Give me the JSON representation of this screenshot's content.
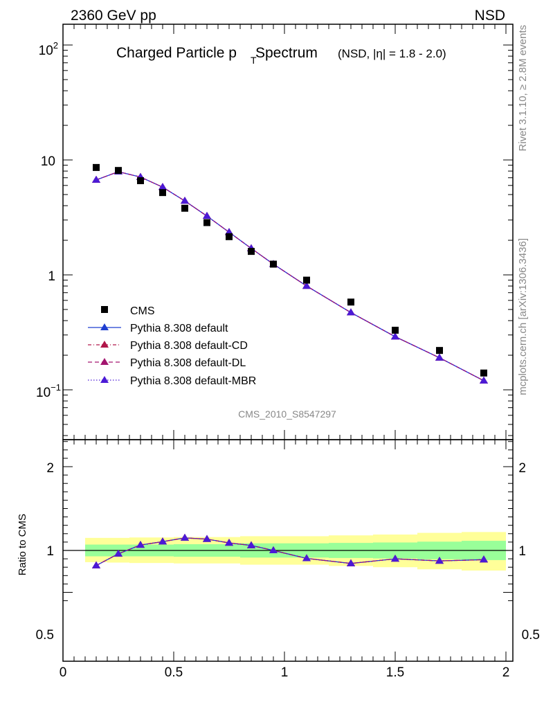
{
  "header": {
    "left": "2360 GeV pp",
    "right": "NSD"
  },
  "side_labels": {
    "rivet": "Rivet 3.1.10, ≥ 2.8M events",
    "mcplots": "mcplots.cern.ch [arXiv:1306.3436]"
  },
  "watermark": "CMS_2010_S8547297",
  "colors": {
    "cms": "#000000",
    "default": "#1f3fd1",
    "cd": "#b0174a",
    "dl": "#a3156f",
    "mbr": "#4b1ad6",
    "band_outer": "#ffff99",
    "band_inner": "#99ff99"
  },
  "chart_data": [
    {
      "type": "scatter",
      "title": "Charged Particle p",
      "title_sub": "T",
      "title_suffix": "Spectrum",
      "title_note": "(NSD, |η| = 1.8 - 2.0)",
      "xlabel": "",
      "ylabel": "",
      "yscale": "log",
      "xlim": [
        0,
        2
      ],
      "ylim": [
        0.04,
        150
      ],
      "ytick_labels": [
        "10",
        "1"
      ],
      "ytick_label_powers": [
        {
          "base": "10",
          "exp": "2"
        },
        {
          "base": "10",
          "exp": "−1"
        }
      ],
      "x": [
        0.15,
        0.25,
        0.35,
        0.45,
        0.55,
        0.65,
        0.75,
        0.85,
        0.95,
        1.1,
        1.3,
        1.5,
        1.7,
        1.9
      ],
      "series": [
        {
          "name": "CMS",
          "marker": "square",
          "values": [
            8.6,
            8.1,
            6.6,
            5.2,
            3.8,
            2.85,
            2.15,
            1.6,
            1.24,
            0.9,
            0.58,
            0.33,
            0.22,
            0.14
          ]
        },
        {
          "name": "Pythia 8.308 default",
          "marker": "triangle",
          "line": "solid",
          "values": [
            6.7,
            7.9,
            7.1,
            5.8,
            4.4,
            3.25,
            2.35,
            1.7,
            1.24,
            0.8,
            0.47,
            0.29,
            0.19,
            0.12
          ]
        },
        {
          "name": "Pythia 8.308 default-CD",
          "marker": "triangle",
          "line": "dashdot",
          "values": [
            6.7,
            7.9,
            7.1,
            5.8,
            4.4,
            3.25,
            2.35,
            1.7,
            1.24,
            0.8,
            0.47,
            0.29,
            0.19,
            0.12
          ]
        },
        {
          "name": "Pythia 8.308 default-DL",
          "marker": "triangle",
          "line": "dashed",
          "values": [
            6.7,
            7.9,
            7.1,
            5.8,
            4.4,
            3.25,
            2.35,
            1.7,
            1.24,
            0.8,
            0.47,
            0.29,
            0.19,
            0.12
          ]
        },
        {
          "name": "Pythia 8.308 default-MBR",
          "marker": "triangle",
          "line": "dotted",
          "values": [
            6.7,
            7.9,
            7.1,
            5.8,
            4.4,
            3.25,
            2.35,
            1.7,
            1.24,
            0.8,
            0.47,
            0.29,
            0.19,
            0.12
          ]
        }
      ],
      "legend": "bottom-left"
    },
    {
      "type": "line",
      "title": "",
      "xlabel": "",
      "ylabel": "Ratio to CMS",
      "xlim": [
        0,
        2
      ],
      "ylim": [
        0.4,
        2.3
      ],
      "ytick_labels": [
        "2",
        "1",
        "0.5"
      ],
      "xtick_labels": [
        "0",
        "0.5",
        "1",
        "1.5",
        "2"
      ],
      "reference_line": 1,
      "bands": {
        "x_edges": [
          0.1,
          0.2,
          0.3,
          0.4,
          0.5,
          0.6,
          0.7,
          0.8,
          0.9,
          1.0,
          1.2,
          1.4,
          1.6,
          1.8,
          2.0
        ],
        "inner_low": [
          0.93,
          0.93,
          0.93,
          0.93,
          0.925,
          0.925,
          0.925,
          0.915,
          0.915,
          0.915,
          0.91,
          0.905,
          0.895,
          0.885
        ],
        "inner_high": [
          1.07,
          1.07,
          1.07,
          1.07,
          1.075,
          1.075,
          1.075,
          1.085,
          1.085,
          1.085,
          1.09,
          1.095,
          1.105,
          1.115
        ],
        "outer_low": [
          0.86,
          0.855,
          0.85,
          0.85,
          0.845,
          0.845,
          0.845,
          0.83,
          0.83,
          0.83,
          0.815,
          0.8,
          0.775,
          0.76
        ],
        "outer_high": [
          1.15,
          1.15,
          1.155,
          1.155,
          1.16,
          1.16,
          1.16,
          1.17,
          1.17,
          1.17,
          1.18,
          1.19,
          1.21,
          1.22
        ]
      },
      "x": [
        0.15,
        0.25,
        0.35,
        0.45,
        0.55,
        0.65,
        0.75,
        0.85,
        0.95,
        1.1,
        1.3,
        1.5,
        1.7,
        1.9
      ],
      "series": [
        {
          "name": "Pythia 8.308 default",
          "values": [
            0.82,
            0.96,
            1.065,
            1.105,
            1.15,
            1.135,
            1.09,
            1.06,
            1.0,
            0.905,
            0.845,
            0.9,
            0.875,
            0.89
          ]
        },
        {
          "name": "Pythia 8.308 default-CD",
          "values": [
            0.82,
            0.96,
            1.065,
            1.105,
            1.15,
            1.135,
            1.09,
            1.06,
            1.0,
            0.905,
            0.845,
            0.9,
            0.875,
            0.89
          ]
        },
        {
          "name": "Pythia 8.308 default-DL",
          "values": [
            0.82,
            0.96,
            1.065,
            1.105,
            1.15,
            1.135,
            1.09,
            1.06,
            1.0,
            0.905,
            0.845,
            0.9,
            0.875,
            0.89
          ]
        },
        {
          "name": "Pythia 8.308 default-MBR",
          "values": [
            0.82,
            0.96,
            1.065,
            1.105,
            1.15,
            1.135,
            1.09,
            1.06,
            1.0,
            0.905,
            0.845,
            0.9,
            0.875,
            0.89
          ]
        }
      ]
    }
  ]
}
